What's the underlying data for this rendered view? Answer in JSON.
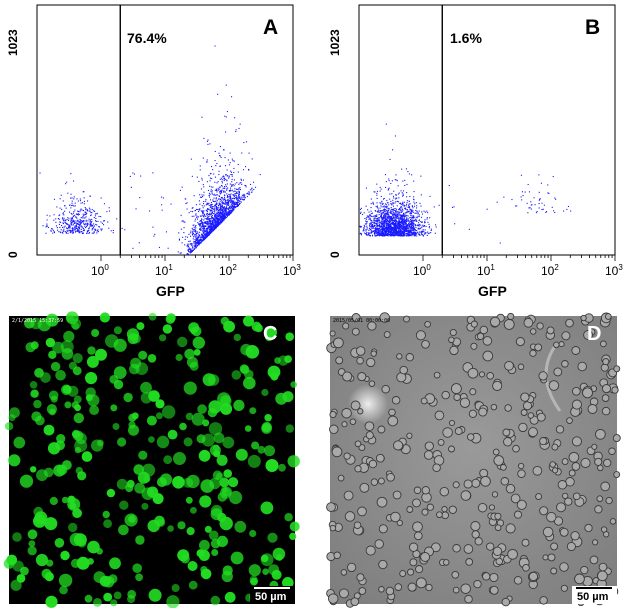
{
  "figure": {
    "panels": {
      "A": {
        "label": "A",
        "gate_percent_label": "76.4%",
        "y_tick_top": "1023",
        "y_tick_bottom": "0",
        "x_axis_label": "GFP",
        "x_tick_labels": [
          {
            "base": "10",
            "exp": "0"
          },
          {
            "base": "10",
            "exp": "1"
          },
          {
            "base": "10",
            "exp": "2"
          },
          {
            "base": "10",
            "exp": "3"
          }
        ]
      },
      "B": {
        "label": "B",
        "gate_percent_label": "1.6%",
        "y_tick_top": "1023",
        "y_tick_bottom": "0",
        "x_axis_label": "GFP",
        "x_tick_labels": [
          {
            "base": "10",
            "exp": "0"
          },
          {
            "base": "10",
            "exp": "1"
          },
          {
            "base": "10",
            "exp": "2"
          },
          {
            "base": "10",
            "exp": "3"
          }
        ]
      },
      "C": {
        "label": "C",
        "image_type": "fluorescence-micrograph",
        "timestamp": "2/1/2015 15:37:59",
        "scale_bar_label": "50 µm",
        "cell_color": "#22dd22"
      },
      "D": {
        "label": "D",
        "image_type": "brightfield-micrograph",
        "timestamp": "2015/05/01 00:00:00",
        "scale_bar_label": "50 µm"
      }
    }
  },
  "chart_data": [
    {
      "type": "scatter",
      "panel": "A",
      "xlabel": "GFP",
      "x_scale": "log",
      "xlim": [
        0.1,
        1000
      ],
      "ylim": [
        0,
        1023
      ],
      "y_ticks": [
        0,
        1023
      ],
      "gate_x": 2,
      "gate_label": "76.4%",
      "point_color": "#1a1aff",
      "populations": [
        {
          "x_center": 0.4,
          "y_center": 90,
          "count": 420,
          "note": "GFP-negative cluster"
        },
        {
          "x_center": 60,
          "y_center": 110,
          "count": 1700,
          "note": "GFP-positive cluster"
        }
      ],
      "grid": false
    },
    {
      "type": "scatter",
      "panel": "B",
      "xlabel": "GFP",
      "x_scale": "log",
      "xlim": [
        0.1,
        1000
      ],
      "ylim": [
        0,
        1023
      ],
      "y_ticks": [
        0,
        1023
      ],
      "gate_x": 2,
      "gate_label": "1.6%",
      "point_color": "#1a1aff",
      "populations": [
        {
          "x_center": 0.35,
          "y_center": 80,
          "count": 1800,
          "note": "GFP-negative cluster"
        },
        {
          "x_center": 60,
          "y_center": 170,
          "count": 50,
          "note": "small GFP-positive cluster"
        }
      ],
      "grid": false
    }
  ]
}
